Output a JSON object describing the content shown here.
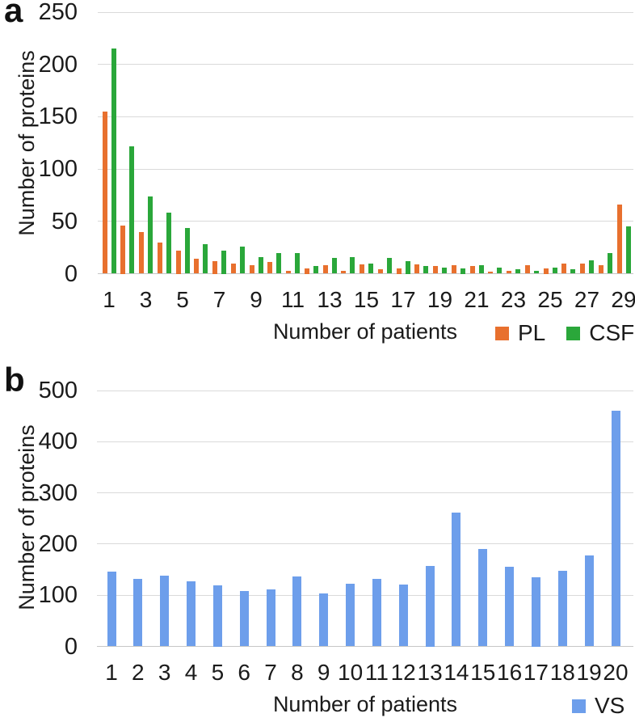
{
  "figure": {
    "background": "#ffffff",
    "text_color": "#1b1b1b",
    "grid_color": "#dadada"
  },
  "chart_data": [
    {
      "type": "bar",
      "panel_label": "a",
      "xlabel": "Number of patients",
      "ylabel": "Number of proteins",
      "categories": [
        1,
        2,
        3,
        4,
        5,
        6,
        7,
        8,
        9,
        10,
        11,
        12,
        13,
        14,
        15,
        16,
        17,
        18,
        19,
        20,
        21,
        22,
        23,
        24,
        25,
        26,
        27,
        28,
        29
      ],
      "x_tick_labels": [
        "1",
        "3",
        "5",
        "7",
        "9",
        "11",
        "13",
        "15",
        "17",
        "19",
        "21",
        "23",
        "25",
        "27",
        "29"
      ],
      "series": [
        {
          "name": "PL",
          "color": "#e8702e",
          "values": [
            155,
            46,
            40,
            30,
            22,
            14,
            12,
            10,
            8,
            11,
            3,
            5,
            8,
            3,
            9,
            4,
            5,
            9,
            7,
            8,
            7,
            2,
            3,
            8,
            5,
            10,
            10,
            8,
            66
          ]
        },
        {
          "name": "CSF",
          "color": "#2aa73a",
          "values": [
            215,
            122,
            74,
            58,
            44,
            28,
            22,
            26,
            16,
            20,
            20,
            7,
            15,
            16,
            10,
            15,
            12,
            7,
            6,
            5,
            8,
            6,
            4,
            3,
            6,
            4,
            13,
            20,
            45
          ]
        }
      ],
      "ylim": [
        0,
        250
      ],
      "ytick_step": 50,
      "grid": "horizontal",
      "legend_position": "bottom-right"
    },
    {
      "type": "bar",
      "panel_label": "b",
      "xlabel": "Number of patients",
      "ylabel": "Number of proteins",
      "categories": [
        1,
        2,
        3,
        4,
        5,
        6,
        7,
        8,
        9,
        10,
        11,
        12,
        13,
        14,
        15,
        16,
        17,
        18,
        19,
        20
      ],
      "x_tick_labels": [
        "1",
        "2",
        "3",
        "4",
        "5",
        "6",
        "7",
        "8",
        "9",
        "10",
        "11",
        "12",
        "13",
        "14",
        "15",
        "16",
        "17",
        "18",
        "19",
        "20"
      ],
      "series": [
        {
          "name": "VS",
          "color": "#6d9eeb",
          "values": [
            146,
            132,
            138,
            127,
            120,
            108,
            111,
            136,
            104,
            123,
            132,
            121,
            158,
            262,
            191,
            156,
            135,
            147,
            178,
            461
          ]
        }
      ],
      "ylim": [
        0,
        500
      ],
      "ytick_step": 100,
      "grid": "horizontal",
      "legend_position": "bottom-right"
    }
  ]
}
